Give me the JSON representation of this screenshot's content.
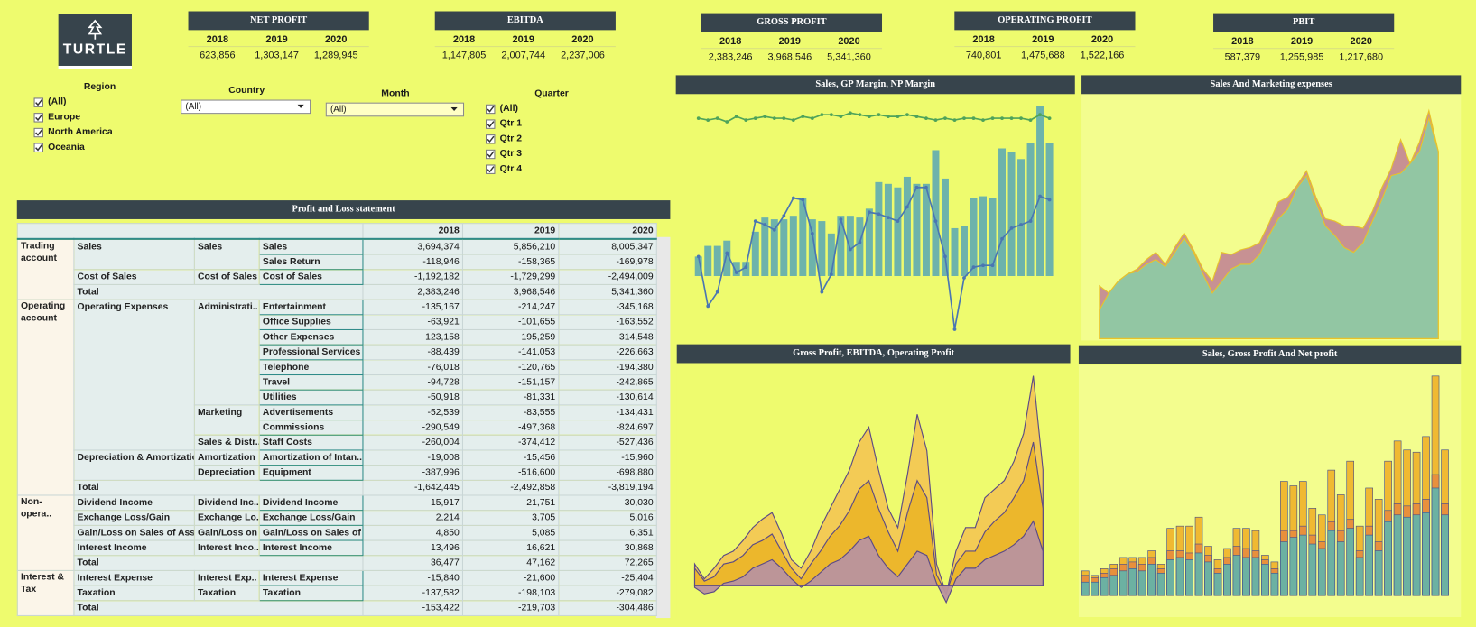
{
  "logo": "TURTLE",
  "kpis": [
    {
      "title": "NET PROFIT",
      "years": [
        2018,
        2019,
        2020
      ],
      "values": [
        "623,856",
        "1,303,147",
        "1,289,945"
      ]
    },
    {
      "title": "EBITDA",
      "years": [
        2018,
        2019,
        2020
      ],
      "values": [
        "1,147,805",
        "2,007,744",
        "2,237,006"
      ]
    },
    {
      "title": "GROSS PROFIT",
      "years": [
        2018,
        2019,
        2020
      ],
      "values": [
        "2,383,246",
        "3,968,546",
        "5,341,360"
      ]
    },
    {
      "title": "OPERATING PROFIT",
      "years": [
        2018,
        2019,
        2020
      ],
      "values": [
        "740,801",
        "1,475,688",
        "1,522,166"
      ]
    },
    {
      "title": "PBIT",
      "years": [
        2018,
        2019,
        2020
      ],
      "values": [
        "587,379",
        "1,255,985",
        "1,217,680"
      ]
    }
  ],
  "filters": {
    "region": {
      "label": "Region",
      "options": [
        "(All)",
        "Europe",
        "North America",
        "Oceania"
      ]
    },
    "country": {
      "label": "Country",
      "value": "(All)"
    },
    "month": {
      "label": "Month",
      "value": "(All)"
    },
    "quarter": {
      "label": "Quarter",
      "options": [
        "(All)",
        "Qtr 1",
        "Qtr 2",
        "Qtr 3",
        "Qtr 4"
      ]
    }
  },
  "pnl": {
    "title": "Profit and Loss statement",
    "columns": [
      "2018",
      "2019",
      "2020"
    ],
    "rows": [
      {
        "cells": [
          "Trading account",
          "Sales",
          "Sales",
          "Sales"
        ],
        "values": [
          "3,694,374",
          "5,856,210",
          "8,005,347"
        ]
      },
      {
        "cells": [
          null,
          null,
          null,
          "Sales Return"
        ],
        "values": [
          "-118,946",
          "-158,365",
          "-169,978"
        ]
      },
      {
        "cells": [
          null,
          "Cost of Sales",
          "Cost of Sales",
          "Cost of Sales"
        ],
        "values": [
          "-1,192,182",
          "-1,729,299",
          "-2,494,009"
        ]
      },
      {
        "cells": [
          null,
          "Total"
        ],
        "values": [
          "2,383,246",
          "3,968,546",
          "5,341,360"
        ]
      },
      {
        "cells": [
          "Operating account",
          "Operating Expenses",
          "Administrati..",
          "Entertainment"
        ],
        "values": [
          "-135,167",
          "-214,247",
          "-345,168"
        ]
      },
      {
        "cells": [
          null,
          null,
          null,
          "Office Supplies"
        ],
        "values": [
          "-63,921",
          "-101,655",
          "-163,552"
        ]
      },
      {
        "cells": [
          null,
          null,
          null,
          "Other Expenses"
        ],
        "values": [
          "-123,158",
          "-195,259",
          "-314,548"
        ]
      },
      {
        "cells": [
          null,
          null,
          null,
          "Professional Services"
        ],
        "values": [
          "-88,439",
          "-141,053",
          "-226,663"
        ]
      },
      {
        "cells": [
          null,
          null,
          null,
          "Telephone"
        ],
        "values": [
          "-76,018",
          "-120,765",
          "-194,380"
        ]
      },
      {
        "cells": [
          null,
          null,
          null,
          "Travel"
        ],
        "values": [
          "-94,728",
          "-151,157",
          "-242,865"
        ]
      },
      {
        "cells": [
          null,
          null,
          null,
          "Utilities"
        ],
        "values": [
          "-50,918",
          "-81,331",
          "-130,614"
        ]
      },
      {
        "cells": [
          null,
          null,
          "Marketing",
          "Advertisements"
        ],
        "values": [
          "-52,539",
          "-83,555",
          "-134,431"
        ]
      },
      {
        "cells": [
          null,
          null,
          null,
          "Commissions"
        ],
        "values": [
          "-290,549",
          "-497,368",
          "-824,697"
        ]
      },
      {
        "cells": [
          null,
          null,
          "Sales & Distr..",
          "Staff Costs"
        ],
        "values": [
          "-260,004",
          "-374,412",
          "-527,436"
        ]
      },
      {
        "cells": [
          null,
          "Depreciation & Amortization",
          "Amortization",
          "Amortization of Intan.."
        ],
        "values": [
          "-19,008",
          "-15,456",
          "-15,960"
        ]
      },
      {
        "cells": [
          null,
          null,
          "Depreciation",
          "Equipment"
        ],
        "values": [
          "-387,996",
          "-516,600",
          "-698,880"
        ]
      },
      {
        "cells": [
          null,
          "Total"
        ],
        "values": [
          "-1,642,445",
          "-2,492,858",
          "-3,819,194"
        ]
      },
      {
        "cells": [
          "Non-opera..",
          "Dividend Income",
          "Dividend Inc..",
          "Dividend Income"
        ],
        "values": [
          "15,917",
          "21,751",
          "30,030"
        ]
      },
      {
        "cells": [
          null,
          "Exchange Loss/Gain",
          "Exchange Lo..",
          "Exchange Loss/Gain"
        ],
        "values": [
          "2,214",
          "3,705",
          "5,016"
        ]
      },
      {
        "cells": [
          null,
          "Gain/Loss on Sales of Asset",
          "Gain/Loss on ..",
          "Gain/Loss on Sales of .."
        ],
        "values": [
          "4,850",
          "5,085",
          "6,351"
        ]
      },
      {
        "cells": [
          null,
          "Interest Income",
          "Interest Inco..",
          "Interest Income"
        ],
        "values": [
          "13,496",
          "16,621",
          "30,868"
        ]
      },
      {
        "cells": [
          null,
          "Total"
        ],
        "values": [
          "36,477",
          "47,162",
          "72,265"
        ]
      },
      {
        "cells": [
          "Interest & Tax",
          "Interest Expense",
          "Interest Exp..",
          "Interest Expense"
        ],
        "values": [
          "-15,840",
          "-21,600",
          "-25,404"
        ]
      },
      {
        "cells": [
          null,
          "Taxation",
          "Taxation",
          "Taxation"
        ],
        "values": [
          "-137,582",
          "-198,103",
          "-279,082"
        ]
      },
      {
        "cells": [
          null,
          "Total"
        ],
        "values": [
          "-153,422",
          "-219,703",
          "-304,486"
        ]
      }
    ]
  },
  "chart_data": [
    {
      "type": "combo",
      "title": "Sales, GP Margin, NP Margin",
      "ylim": [
        -30,
        100
      ],
      "series": [
        {
          "type": "bar",
          "color": "#6db3ab",
          "values": [
            11,
            17,
            17,
            20,
            8,
            8,
            25,
            33,
            32,
            32,
            34,
            44,
            32,
            31,
            24,
            34,
            34,
            33,
            38,
            53,
            52,
            50,
            56,
            52,
            52,
            71,
            55,
            27,
            28,
            44,
            45,
            44,
            72,
            70,
            66,
            75,
            96,
            75
          ]
        },
        {
          "type": "line",
          "color": "#4fa35a",
          "values": [
            89,
            88,
            89,
            87,
            90,
            88,
            89,
            90,
            89,
            89,
            88,
            90,
            89,
            91,
            91,
            90,
            92,
            91,
            90,
            91,
            90,
            90,
            91,
            90,
            89,
            88,
            89,
            88,
            89,
            89,
            88,
            89,
            89,
            89,
            89,
            88,
            91,
            89
          ]
        },
        {
          "type": "line",
          "color": "#4a76b2",
          "values": [
            11,
            -17,
            -9,
            13,
            2,
            5,
            31,
            29,
            26,
            34,
            44,
            43,
            24,
            -9,
            1,
            32,
            15,
            19,
            36,
            35,
            33,
            31,
            39,
            50,
            50,
            31,
            11,
            -30,
            -1,
            5,
            6,
            6,
            21,
            27,
            29,
            31,
            45,
            43
          ]
        }
      ]
    },
    {
      "type": "area",
      "title": "Sales And Marketing expenses",
      "ylim": [
        0,
        100
      ],
      "stroke": "#e8c22a",
      "series": [
        {
          "color": "#c48b93",
          "values": [
            22,
            19,
            24,
            27,
            29,
            33,
            36,
            31,
            38,
            44,
            37,
            29,
            24,
            36,
            35,
            37,
            38,
            40,
            48,
            57,
            59,
            64,
            70,
            59,
            50,
            49,
            47,
            47,
            46,
            53,
            63,
            71,
            83,
            73,
            82,
            95,
            78
          ]
        },
        {
          "color": "#8fc9a3",
          "values": [
            12,
            19,
            24,
            27,
            28,
            31,
            33,
            30,
            36,
            42,
            36,
            27,
            19,
            24,
            29,
            31,
            31,
            35,
            43,
            50,
            54,
            63,
            68,
            57,
            47,
            43,
            38,
            36,
            40,
            49,
            58,
            68,
            69,
            73,
            78,
            92,
            78
          ]
        }
      ]
    },
    {
      "type": "area",
      "title": "Gross Profit, EBITDA, Operating Profit",
      "ylim": [
        -10,
        100
      ],
      "stroke": "#5b4a86",
      "series": [
        {
          "color": "#f2c853",
          "values": [
            10,
            3,
            8,
            14,
            16,
            21,
            27,
            31,
            34,
            24,
            12,
            8,
            16,
            27,
            36,
            45,
            54,
            67,
            74,
            54,
            36,
            27,
            52,
            80,
            63,
            10,
            -4,
            16,
            27,
            27,
            41,
            45,
            49,
            58,
            71,
            98,
            54
          ]
        },
        {
          "color": "#ebb52a",
          "values": [
            8,
            2,
            4,
            10,
            11,
            14,
            19,
            21,
            24,
            16,
            8,
            3,
            10,
            16,
            23,
            28,
            35,
            45,
            49,
            36,
            25,
            16,
            34,
            49,
            41,
            5,
            -4,
            10,
            16,
            16,
            25,
            30,
            34,
            41,
            49,
            67,
            36
          ]
        },
        {
          "color": "#b9929e",
          "values": [
            -1,
            -4,
            -3,
            1,
            2,
            4,
            8,
            10,
            12,
            8,
            3,
            -1,
            2,
            6,
            10,
            12,
            16,
            21,
            23,
            14,
            8,
            4,
            10,
            16,
            14,
            1,
            -8,
            3,
            8,
            8,
            12,
            14,
            16,
            19,
            23,
            30,
            16
          ]
        }
      ]
    },
    {
      "type": "bar",
      "title": "Sales, Gross Profit And  Net profit",
      "ylim": [
        -5,
        100
      ],
      "stroke": "#46508c",
      "series": [
        {
          "color": "#f0b932",
          "values": [
            11,
            9,
            12,
            14,
            17,
            17,
            17,
            20,
            14,
            30,
            31,
            31,
            35,
            22,
            16,
            21,
            30,
            30,
            29,
            18,
            15,
            51,
            49,
            51,
            39,
            36,
            56,
            45,
            60,
            31,
            48,
            43,
            60,
            69,
            65,
            64,
            71,
            98,
            65
          ]
        },
        {
          "color": "#e8903c",
          "values": [
            9,
            8,
            10,
            12,
            14,
            15,
            14,
            17,
            12,
            20,
            20,
            19,
            23,
            18,
            12,
            17,
            22,
            21,
            20,
            16,
            12,
            29,
            29,
            31,
            27,
            24,
            33,
            29,
            34,
            20,
            31,
            24,
            38,
            41,
            40,
            41,
            43,
            54,
            41
          ]
        },
        {
          "color": "#6cb1a2",
          "values": [
            6,
            6,
            8,
            9,
            11,
            12,
            11,
            14,
            10,
            16,
            17,
            16,
            19,
            15,
            10,
            14,
            18,
            17,
            17,
            14,
            10,
            24,
            26,
            27,
            23,
            21,
            29,
            24,
            30,
            17,
            27,
            20,
            33,
            36,
            35,
            36,
            37,
            48,
            36
          ]
        }
      ]
    }
  ]
}
